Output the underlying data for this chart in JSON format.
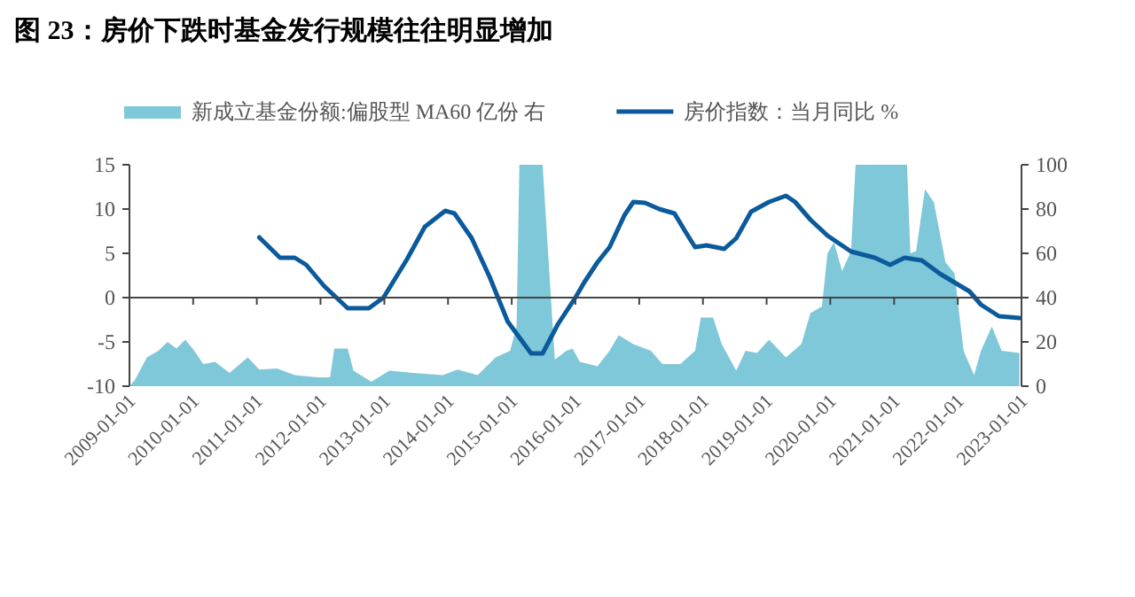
{
  "chart_data": {
    "type": "line",
    "title": "图 23：房价下跌时基金发行规模往往明显增加",
    "legend": "top",
    "marker": "none",
    "line_style": "solid",
    "xlim": [
      "2009-01-01",
      "2023-01-01"
    ],
    "xticks": [
      "2009-01-01",
      "2010-01-01",
      "2011-01-01",
      "2012-01-01",
      "2013-01-01",
      "2014-01-01",
      "2015-01-01",
      "2016-01-01",
      "2017-01-01",
      "2018-01-01",
      "2019-01-01",
      "2020-01-01",
      "2021-01-01",
      "2022-01-01",
      "2023-01-01"
    ],
    "ylim": [
      -10,
      15
    ],
    "yticks": [
      -10,
      -5,
      0,
      5,
      10,
      15
    ],
    "y2lim": [
      0,
      100
    ],
    "y2ticks": [
      0,
      20,
      40,
      60,
      80,
      100
    ],
    "series": [
      {
        "name": "新成立基金份额:偏股型 MA60 亿份 右",
        "type": "area",
        "axis": "y2",
        "color": "#7fc8d9",
        "x": [
          "2009-01-01",
          "2009-02-03",
          "2009-04-11",
          "2009-06-16",
          "2009-08-07",
          "2009-09-27",
          "2009-11-17",
          "2010-01-08",
          "2010-02-28",
          "2010-05-07",
          "2010-07-29",
          "2010-11-10",
          "2011-01-15",
          "2011-04-26",
          "2011-08-07",
          "2011-12-20",
          "2012-02-25",
          "2012-03-20",
          "2012-06-05",
          "2012-07-08",
          "2012-10-19",
          "2013-01-29",
          "2013-06-13",
          "2013-12-02",
          "2014-02-25",
          "2014-06-20",
          "2014-10-01",
          "2014-12-23",
          "2015-01-29",
          "2015-02-14",
          "2015-06-27",
          "2015-09-05",
          "2015-11-10",
          "2015-12-16",
          "2016-01-26",
          "2016-05-07",
          "2016-07-15",
          "2016-09-05",
          "2016-11-28",
          "2017-03-09",
          "2017-05-14",
          "2017-08-25",
          "2017-11-17",
          "2017-12-20",
          "2018-02-28",
          "2018-04-19",
          "2018-07-11",
          "2018-09-02",
          "2018-11-07",
          "2019-01-15",
          "2019-04-22",
          "2019-07-19",
          "2019-09-09",
          "2019-11-14",
          "2019-12-16",
          "2020-01-22",
          "2020-03-09",
          "2020-04-29",
          "2020-05-25",
          "2021-03-16",
          "2021-04-04",
          "2021-05-07",
          "2021-06-27",
          "2021-08-17",
          "2021-10-22",
          "2021-12-13",
          "2022-02-03",
          "2022-04-04",
          "2022-05-14",
          "2022-07-15",
          "2022-09-09",
          "2022-12-20"
        ],
        "values": [
          0,
          3,
          13,
          16,
          20,
          17,
          21,
          16,
          10,
          11,
          6,
          13,
          7.5,
          8,
          5,
          4,
          4,
          17,
          17,
          7,
          2,
          7,
          6,
          5,
          7.5,
          5,
          13,
          16,
          27,
          100,
          100,
          12,
          16,
          17,
          11,
          9,
          16,
          23,
          19,
          16,
          10,
          10,
          16,
          31,
          31,
          19,
          7,
          16,
          15,
          21,
          13,
          19,
          33,
          36,
          60,
          65,
          52,
          61,
          100,
          100,
          60,
          61,
          89,
          83,
          56,
          51,
          16,
          5,
          16,
          27,
          16,
          15
        ]
      },
      {
        "name": "房价指数：当月同比 %",
        "axis": "y",
        "color": "#0b5a9c",
        "x": [
          "2011-01-15",
          "2011-05-14",
          "2011-08-07",
          "2011-10-11",
          "2012-01-22",
          "2012-06-05",
          "2012-10-04",
          "2012-12-27",
          "2013-05-10",
          "2013-08-21",
          "2013-12-16",
          "2014-02-07",
          "2014-05-17",
          "2014-08-28",
          "2014-12-09",
          "2015-04-22",
          "2015-06-27",
          "2015-09-23",
          "2016-01-01",
          "2016-02-20",
          "2016-05-07",
          "2016-07-15",
          "2016-10-08",
          "2016-11-28",
          "2017-02-03",
          "2017-04-26",
          "2017-07-22",
          "2017-09-27",
          "2017-11-17",
          "2018-01-22",
          "2018-03-13",
          "2018-05-03",
          "2018-07-11",
          "2018-10-04",
          "2019-01-15",
          "2019-04-22",
          "2019-06-13",
          "2019-09-09",
          "2019-12-16",
          "2020-04-29",
          "2020-09-13",
          "2020-12-09",
          "2021-03-02",
          "2021-06-09",
          "2021-09-20",
          "2022-03-09",
          "2022-05-14",
          "2022-08-25",
          "2022-12-20"
        ],
        "values": [
          6.8,
          4.5,
          4.5,
          3.7,
          1.3,
          -1.2,
          -1.2,
          0,
          4.3,
          8,
          9.8,
          9.5,
          6.7,
          2.3,
          -2.7,
          -6.3,
          -6.3,
          -3,
          0,
          1.7,
          4,
          5.7,
          9.3,
          10.8,
          10.7,
          10,
          9.5,
          7.3,
          5.7,
          5.9,
          5.7,
          5.5,
          6.7,
          9.7,
          10.8,
          11.5,
          10.8,
          8.8,
          7,
          5.2,
          4.5,
          3.7,
          4.5,
          4.2,
          2.7,
          0.7,
          -0.8,
          -2.1,
          -2.3
        ]
      }
    ]
  }
}
